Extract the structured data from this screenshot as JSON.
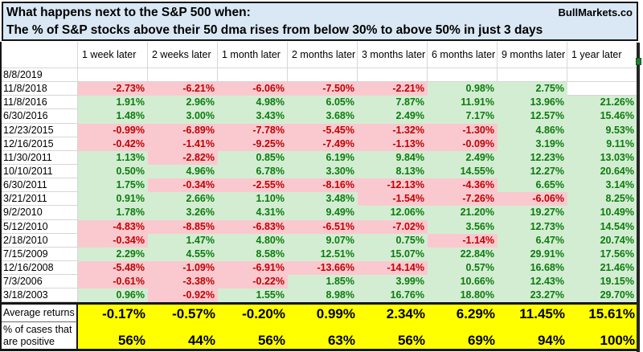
{
  "title": {
    "line1": "What happens next to the S&P 500 when:",
    "line2": "The % of S&P stocks above their 50 dma rises from below 30% to above 50% in just 3 days",
    "brand": "BullMarkets.co"
  },
  "table": {
    "columns": [
      "1 week later",
      "2 weeks later",
      "1 month later",
      "2 months later",
      "3 months later",
      "6 months later",
      "9 months later",
      "1 year later"
    ],
    "rows": [
      {
        "date": "8/8/2019",
        "values": [
          null,
          null,
          null,
          null,
          null,
          null,
          null,
          null
        ]
      },
      {
        "date": "11/8/2018",
        "values": [
          "-2.73%",
          "-6.21%",
          "-6.06%",
          "-7.50%",
          "-2.21%",
          "0.98%",
          "2.75%",
          null
        ]
      },
      {
        "date": "11/8/2016",
        "values": [
          "1.91%",
          "2.96%",
          "4.98%",
          "6.05%",
          "7.87%",
          "11.91%",
          "13.96%",
          "21.26%"
        ]
      },
      {
        "date": "6/30/2016",
        "values": [
          "1.48%",
          "3.00%",
          "3.43%",
          "3.68%",
          "2.49%",
          "7.17%",
          "12.57%",
          "15.46%"
        ]
      },
      {
        "date": "12/23/2015",
        "values": [
          "-0.99%",
          "-6.89%",
          "-7.78%",
          "-5.45%",
          "-1.32%",
          "-1.30%",
          "4.86%",
          "9.53%"
        ]
      },
      {
        "date": "12/16/2015",
        "values": [
          "-0.42%",
          "-1.41%",
          "-9.25%",
          "-7.49%",
          "-1.13%",
          "-0.09%",
          "3.19%",
          "9.11%"
        ]
      },
      {
        "date": "11/30/2011",
        "values": [
          "1.13%",
          "-2.82%",
          "0.85%",
          "6.19%",
          "9.84%",
          "2.49%",
          "12.23%",
          "13.03%"
        ]
      },
      {
        "date": "10/10/2011",
        "values": [
          "0.50%",
          "4.96%",
          "6.78%",
          "3.30%",
          "8.13%",
          "14.55%",
          "12.27%",
          "20.64%"
        ]
      },
      {
        "date": "6/30/2011",
        "values": [
          "1.75%",
          "-0.34%",
          "-2.55%",
          "-8.16%",
          "-12.13%",
          "-4.36%",
          "6.65%",
          "3.14%"
        ]
      },
      {
        "date": "3/21/2011",
        "values": [
          "0.91%",
          "2.66%",
          "1.10%",
          "3.48%",
          "-1.54%",
          "-7.26%",
          "-6.06%",
          "8.25%"
        ]
      },
      {
        "date": "9/2/2010",
        "values": [
          "1.78%",
          "3.26%",
          "4.31%",
          "9.49%",
          "12.06%",
          "21.20%",
          "19.27%",
          "10.49%"
        ]
      },
      {
        "date": "5/12/2010",
        "values": [
          "-4.83%",
          "-8.85%",
          "-6.83%",
          "-6.51%",
          "-7.02%",
          "3.56%",
          "12.73%",
          "14.54%"
        ]
      },
      {
        "date": "2/18/2010",
        "values": [
          "-0.34%",
          "1.47%",
          "4.80%",
          "9.07%",
          "0.75%",
          "-1.14%",
          "6.47%",
          "20.74%"
        ]
      },
      {
        "date": "7/15/2009",
        "values": [
          "2.29%",
          "4.55%",
          "8.58%",
          "12.51%",
          "15.07%",
          "22.84%",
          "29.91%",
          "17.56%"
        ]
      },
      {
        "date": "12/16/2008",
        "values": [
          "-5.48%",
          "-1.09%",
          "-6.91%",
          "-13.66%",
          "-14.14%",
          "0.57%",
          "16.68%",
          "21.46%"
        ]
      },
      {
        "date": "7/3/2006",
        "values": [
          "-0.61%",
          "-3.38%",
          "-0.22%",
          "1.85%",
          "3.99%",
          "10.66%",
          "12.43%",
          "19.15%"
        ]
      },
      {
        "date": "3/18/2003",
        "values": [
          "0.96%",
          "-0.92%",
          "1.55%",
          "8.98%",
          "16.76%",
          "18.80%",
          "23.27%",
          "29.70%"
        ]
      }
    ],
    "average_row": {
      "label": "Average returns",
      "values": [
        "-0.17%",
        "-0.57%",
        "-0.20%",
        "0.99%",
        "2.34%",
        "6.29%",
        "11.45%",
        "15.61%"
      ]
    },
    "positive_row": {
      "label": "% of cases that are positive",
      "values": [
        "56%",
        "44%",
        "56%",
        "63%",
        "56%",
        "69%",
        "94%",
        "100%"
      ]
    }
  },
  "colors": {
    "title_bg": "#d9e8f4",
    "positive_bg": "#d3edd3",
    "positive_text": "#0c7c0c",
    "negative_bg": "#fac9cf",
    "negative_text": "#c00000",
    "summary_bg": "#ffff00",
    "gridline": "#d6d6d6",
    "border": "#151515",
    "fill_handle": "#1e7e2e"
  }
}
